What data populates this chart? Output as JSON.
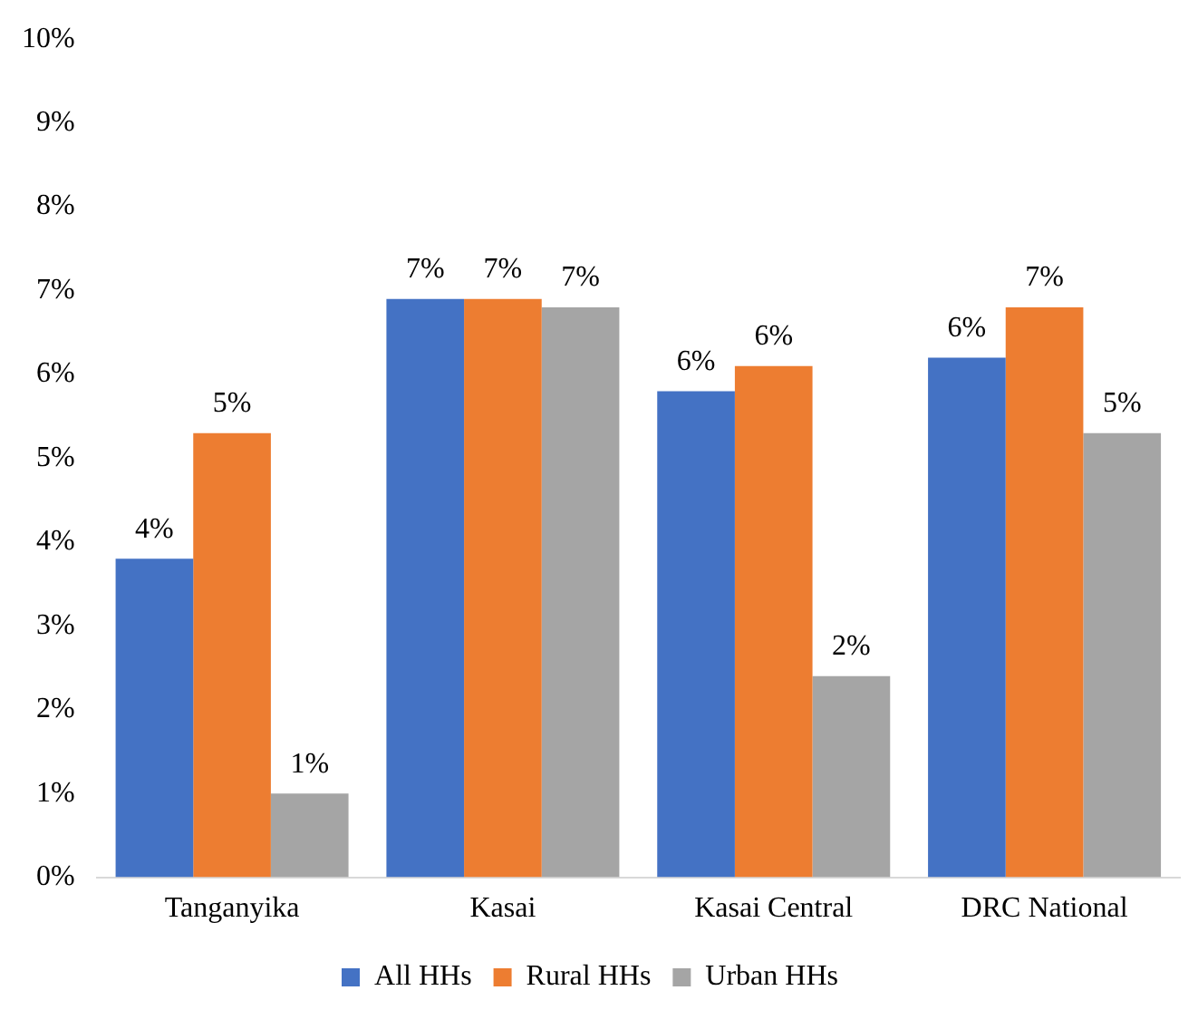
{
  "chart_data": {
    "type": "bar",
    "categories": [
      "Tanganyika",
      "Kasai",
      "Kasai Central",
      "DRC National"
    ],
    "series": [
      {
        "name": "All HHs",
        "color": "#4472c4",
        "values": [
          3.8,
          6.9,
          5.8,
          6.2
        ],
        "value_labels": [
          "4%",
          "7%",
          "6%",
          "6%"
        ]
      },
      {
        "name": "Rural HHs",
        "color": "#ed7d31",
        "values": [
          5.3,
          6.9,
          6.1,
          6.8
        ],
        "value_labels": [
          "5%",
          "7%",
          "6%",
          "7%"
        ]
      },
      {
        "name": "Urban HHs",
        "color": "#a5a5a5",
        "values": [
          1.0,
          6.8,
          2.4,
          5.3
        ],
        "value_labels": [
          "1%",
          "7%",
          "2%",
          "5%"
        ]
      }
    ],
    "ylim": [
      0,
      10
    ],
    "yticks": [
      {
        "value": 0,
        "label": "0%"
      },
      {
        "value": 1,
        "label": "1%"
      },
      {
        "value": 2,
        "label": "2%"
      },
      {
        "value": 3,
        "label": "3%"
      },
      {
        "value": 4,
        "label": "4%"
      },
      {
        "value": 5,
        "label": "5%"
      },
      {
        "value": 6,
        "label": "6%"
      },
      {
        "value": 7,
        "label": "7%"
      },
      {
        "value": 8,
        "label": "8%"
      },
      {
        "value": 9,
        "label": "9%"
      },
      {
        "value": 10,
        "label": "10%"
      }
    ],
    "grid": false,
    "legend": "bottom"
  }
}
